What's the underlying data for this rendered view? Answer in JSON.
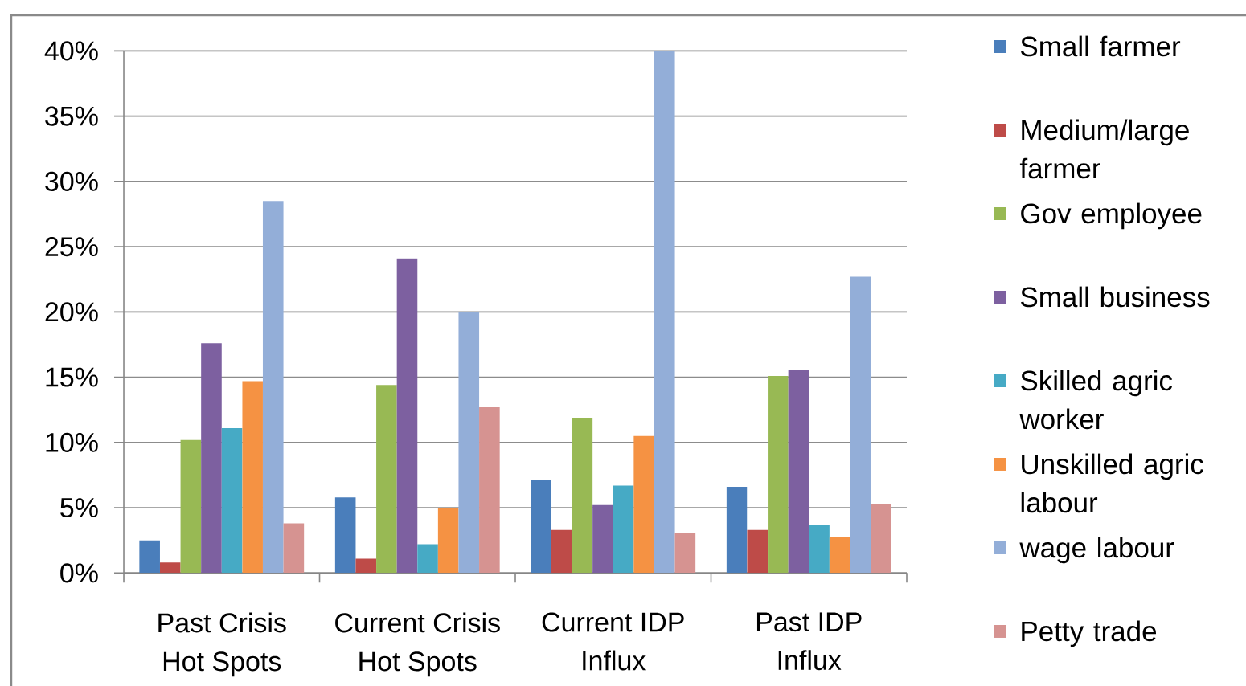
{
  "chart_data": {
    "type": "bar",
    "categories": [
      "Past Crisis Hot Spots",
      "Current Crisis Hot Spots",
      "Current IDP Influx",
      "Past IDP Influx"
    ],
    "series": [
      {
        "name": "Small farmer",
        "color": "#4A7EBB",
        "values": [
          2.5,
          5.8,
          7.1,
          6.6
        ]
      },
      {
        "name": "Medium/large farmer",
        "color": "#BE4B48",
        "values": [
          0.8,
          1.1,
          3.3,
          3.3
        ]
      },
      {
        "name": "Gov employee",
        "color": "#98B954",
        "values": [
          10.2,
          14.4,
          11.9,
          15.1
        ]
      },
      {
        "name": "Small business",
        "color": "#7D60A0",
        "values": [
          17.6,
          24.1,
          5.2,
          15.6
        ]
      },
      {
        "name": "Skilled agric worker",
        "color": "#46AAC5",
        "values": [
          11.1,
          2.2,
          6.7,
          3.7
        ]
      },
      {
        "name": "Unskilled agric labour",
        "color": "#F59243",
        "values": [
          14.7,
          5.0,
          10.5,
          2.8
        ]
      },
      {
        "name": "wage labour",
        "color": "#93AED8",
        "values": [
          28.5,
          20.0,
          40.0,
          22.7
        ]
      },
      {
        "name": "Petty trade",
        "color": "#D69391",
        "values": [
          3.8,
          12.7,
          3.1,
          5.3
        ]
      }
    ],
    "ylim": [
      0,
      40
    ],
    "yticks": [
      {
        "value": 0,
        "label": "0%"
      },
      {
        "value": 5,
        "label": "5%"
      },
      {
        "value": 10,
        "label": "10%"
      },
      {
        "value": 15,
        "label": "15%"
      },
      {
        "value": 20,
        "label": "20%"
      },
      {
        "value": 25,
        "label": "25%"
      },
      {
        "value": 30,
        "label": "30%"
      },
      {
        "value": 35,
        "label": "35%"
      },
      {
        "value": 40,
        "label": "40%"
      }
    ],
    "grid": "y",
    "legend": "right"
  }
}
